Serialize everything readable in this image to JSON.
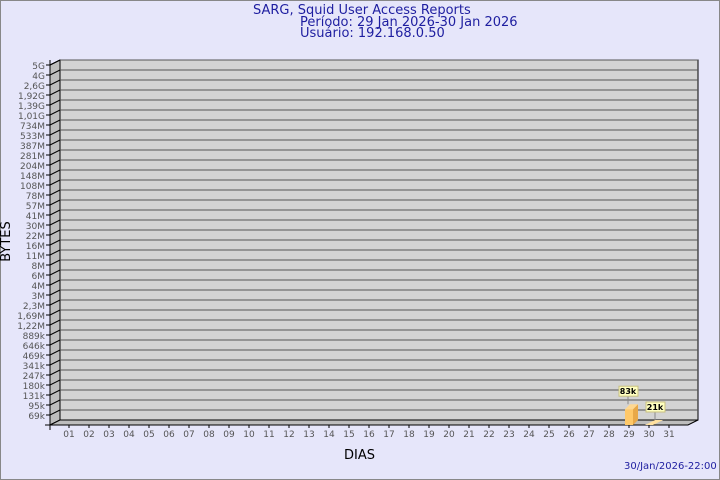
{
  "title": "SARG, Squid User Access Reports",
  "period": "Período: 29 Jan 2026-30 Jan 2026",
  "user": "Usuário: 192.168.0.50",
  "timestamp": "30/Jan/2026-22:00",
  "chart_data": {
    "type": "bar",
    "xlabel": "DIAS",
    "ylabel": "BYTES",
    "y_scale": "log",
    "grid": true,
    "categories": [
      "01",
      "02",
      "03",
      "04",
      "05",
      "06",
      "07",
      "08",
      "09",
      "10",
      "11",
      "12",
      "13",
      "14",
      "15",
      "16",
      "17",
      "18",
      "19",
      "20",
      "21",
      "22",
      "23",
      "24",
      "25",
      "26",
      "27",
      "28",
      "29",
      "30",
      "31"
    ],
    "y_ticks": [
      "5G",
      "4G",
      "2,6G",
      "1,92G",
      "1,39G",
      "1,01G",
      "734M",
      "533M",
      "387M",
      "281M",
      "204M",
      "148M",
      "108M",
      "78M",
      "57M",
      "41M",
      "30M",
      "22M",
      "16M",
      "11M",
      "8M",
      "6M",
      "4M",
      "3M",
      "2,3M",
      "1,69M",
      "1,22M",
      "889k",
      "646k",
      "469k",
      "341k",
      "247k",
      "180k",
      "131k",
      "95k",
      "69k"
    ],
    "bars": [
      {
        "category": "29",
        "value": 83000,
        "label": "83k"
      },
      {
        "category": "30",
        "value": 21000,
        "label": "21k"
      }
    ],
    "colors": {
      "bar": "#ffc868",
      "wall": "#d3d3d3",
      "label_bg": "#ffffc0",
      "text": "#1e1ea0"
    }
  }
}
